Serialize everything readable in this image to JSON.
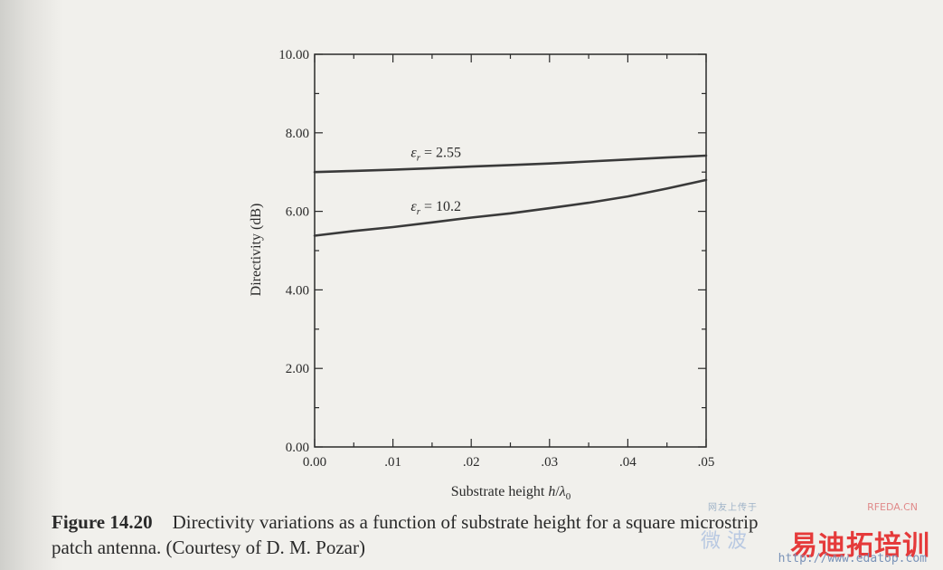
{
  "chart_data": {
    "type": "line",
    "xlabel_prefix": "Substrate height ",
    "xlabel_var": "h",
    "xlabel_slash": "/",
    "xlabel_lambda": "λ",
    "xlabel_sub": "0",
    "ylabel": "Directivity (dB)",
    "xlim": [
      0,
      0.05
    ],
    "ylim": [
      0,
      10
    ],
    "x_ticks": [
      0,
      0.01,
      0.02,
      0.03,
      0.04,
      0.05
    ],
    "x_tick_labels": [
      "0.00",
      ".01",
      ".02",
      ".03",
      ".04",
      ".05"
    ],
    "y_ticks": [
      0,
      2,
      4,
      6,
      8,
      10
    ],
    "y_tick_labels": [
      "0.00",
      "2.00",
      "4.00",
      "6.00",
      "8.00",
      "10.00"
    ],
    "grid": false,
    "series": [
      {
        "name": "εr = 2.55",
        "label_eps": "ε",
        "label_sub": "r",
        "label_rest": " = 2.55",
        "x": [
          0,
          0.005,
          0.01,
          0.015,
          0.02,
          0.025,
          0.03,
          0.035,
          0.04,
          0.045,
          0.05
        ],
        "y": [
          7.0,
          7.03,
          7.06,
          7.1,
          7.14,
          7.18,
          7.22,
          7.27,
          7.32,
          7.37,
          7.42
        ]
      },
      {
        "name": "εr = 10.2",
        "label_eps": "ε",
        "label_sub": "r",
        "label_rest": " = 10.2",
        "x": [
          0,
          0.005,
          0.01,
          0.015,
          0.02,
          0.025,
          0.03,
          0.035,
          0.04,
          0.045,
          0.05
        ],
        "y": [
          5.38,
          5.5,
          5.6,
          5.72,
          5.84,
          5.95,
          6.08,
          6.22,
          6.38,
          6.58,
          6.8
        ]
      }
    ]
  },
  "caption": {
    "label": "Figure 14.20",
    "text_line1": "Directivity variations as a function of substrate height for a square microstrip",
    "text_line2": "patch antenna. (Courtesy of D. M. Pozar)"
  },
  "watermark": {
    "top_text": "网友上传于",
    "rfeda": "RFEDA.CN",
    "mid_text": "微 波",
    "main_text": "易迪拓培训",
    "url": "http://www.edatop.com"
  }
}
